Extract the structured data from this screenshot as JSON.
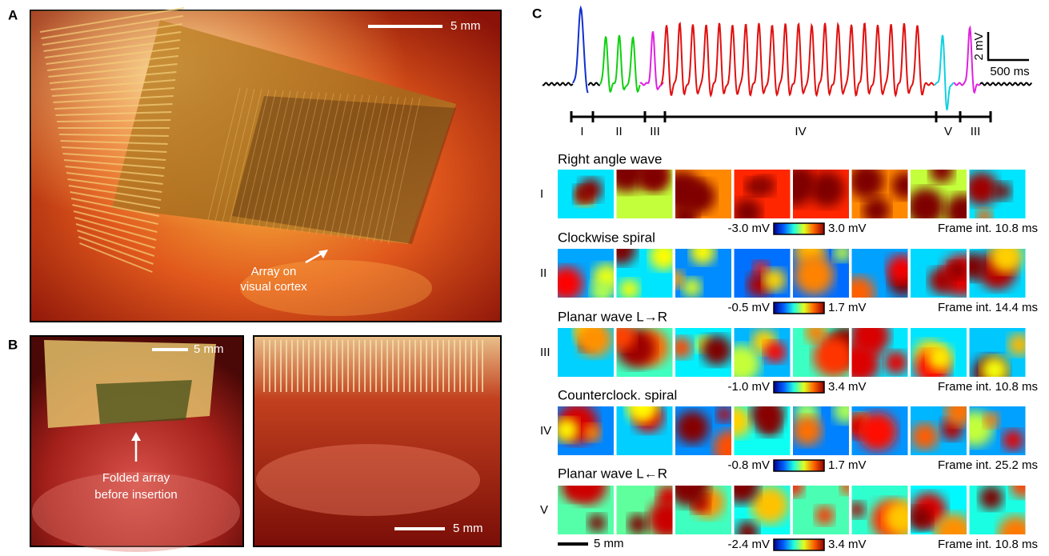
{
  "panels": {
    "a": {
      "label": "A",
      "scale_bar": "5 mm",
      "annotation": [
        "Array on",
        "visual cortex"
      ]
    },
    "b": {
      "label": "B",
      "scale_bar_left": "5 mm",
      "annotation": [
        "Folded array",
        "before insertion"
      ],
      "scale_bar_right": "5 mm"
    },
    "c": {
      "label": "C",
      "trace_scale": {
        "amplitude": "2 mV",
        "time": "500 ms"
      },
      "phases": [
        "I",
        "II",
        "III",
        "IV",
        "V",
        "III"
      ],
      "rows": [
        {
          "title": "Right angle wave",
          "roman": "I",
          "min": "-3.0 mV",
          "max": "3.0 mV",
          "frame_interval": "Frame int. 10.8 ms"
        },
        {
          "title": "Clockwise spiral",
          "roman": "II",
          "min": "-0.5 mV",
          "max": "1.7 mV",
          "frame_interval": "Frame int. 14.4 ms"
        },
        {
          "title": "Planar wave L→R",
          "roman": "III",
          "min": "-1.0 mV",
          "max": "3.4 mV",
          "frame_interval": "Frame int. 10.8 ms"
        },
        {
          "title": "Counterclock. spiral",
          "roman": "IV",
          "min": "-0.8 mV",
          "max": "1.7 mV",
          "frame_interval": "Frame int. 25.2 ms"
        },
        {
          "title": "Planar wave L←R",
          "roman": "V",
          "min": "-2.4 mV",
          "max": "3.4 mV",
          "frame_interval": "Frame int. 10.8 ms"
        }
      ],
      "scale_bar": "5 mm"
    }
  }
}
